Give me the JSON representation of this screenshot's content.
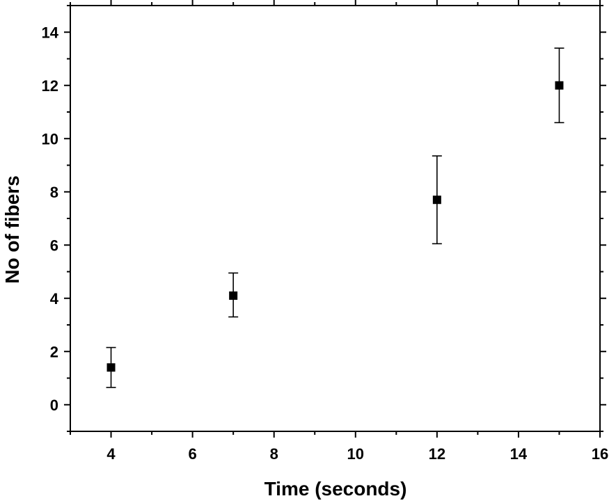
{
  "chart_data": {
    "type": "scatter",
    "title": "",
    "xlabel": "Time (seconds)",
    "ylabel": "No of fibers",
    "xlim": [
      3,
      16
    ],
    "ylim": [
      -1,
      15
    ],
    "xticks": [
      4,
      6,
      8,
      10,
      12,
      14,
      16
    ],
    "xtick_labels": [
      "4",
      "6",
      "8",
      "10",
      "12",
      "14",
      "16"
    ],
    "yticks": [
      0,
      2,
      4,
      6,
      8,
      10,
      12,
      14
    ],
    "ytick_labels": [
      "0",
      "2",
      "4",
      "6",
      "8",
      "10",
      "12",
      "14"
    ],
    "grid": false,
    "legend": "none",
    "marker": "square",
    "color": "#000000",
    "series": [
      {
        "points": [
          {
            "x": 4,
            "y": 1.4,
            "y_low": 0.65,
            "y_high": 2.15
          },
          {
            "x": 7,
            "y": 4.1,
            "y_low": 3.3,
            "y_high": 4.95
          },
          {
            "x": 12,
            "y": 7.7,
            "y_low": 6.05,
            "y_high": 9.35
          },
          {
            "x": 15,
            "y": 12.0,
            "y_low": 10.6,
            "y_high": 13.4
          }
        ]
      }
    ]
  }
}
